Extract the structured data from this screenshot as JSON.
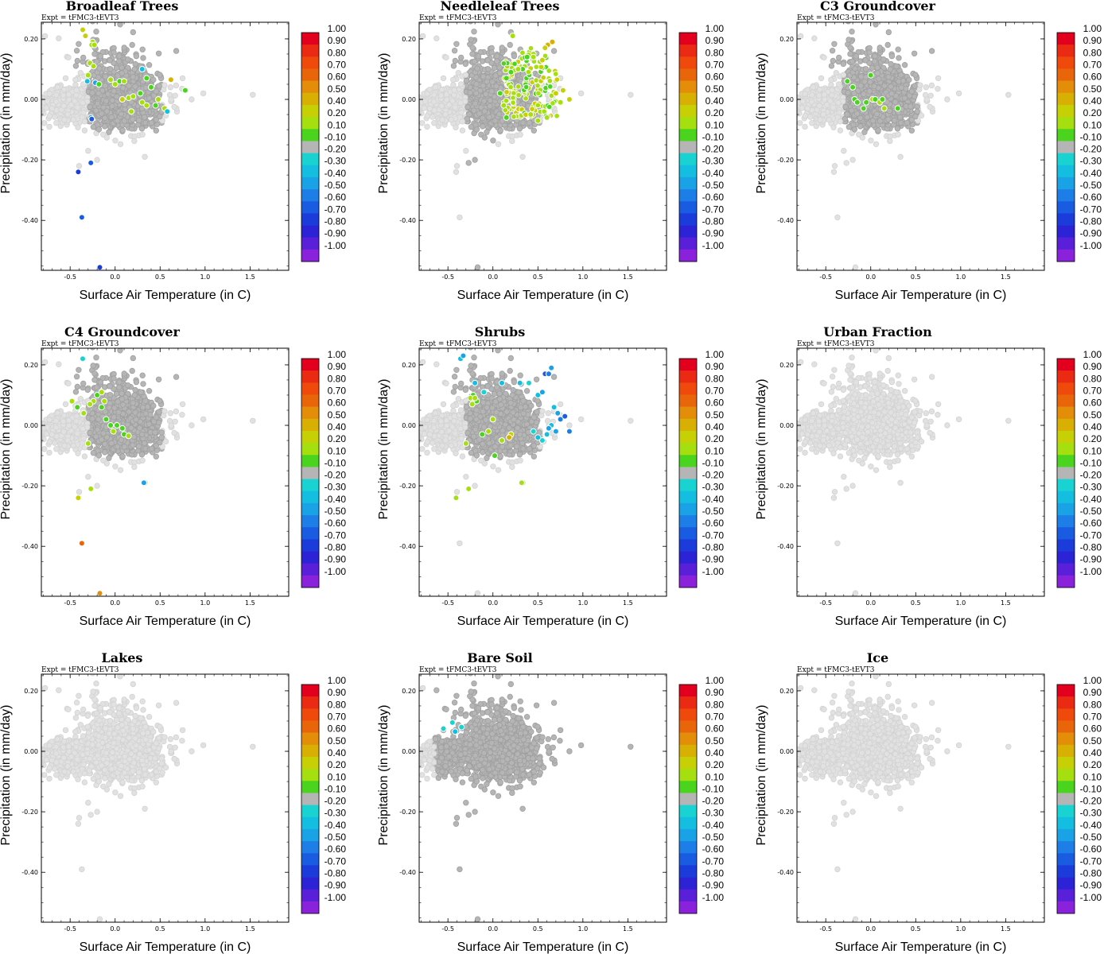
{
  "chart_data": {
    "type": "scatter",
    "experiment": "Expt = tFMC3-tEVT3",
    "xlabel": "Surface Air Temperature (in C)",
    "ylabel": "Precipitation (in mm/day)",
    "xlim": [
      -0.82,
      1.93
    ],
    "ylim": [
      -0.565,
      0.255
    ],
    "xticks": [
      -0.5,
      0.0,
      0.5,
      1.0,
      1.5
    ],
    "xtick_labels": [
      "-0.5",
      "0.0",
      "0.5",
      "1.0",
      "1.5"
    ],
    "yticks": [
      0.2,
      0.0,
      -0.2,
      -0.4
    ],
    "ytick_labels": [
      "0.20",
      "0.00",
      "-0.20",
      "-0.40"
    ],
    "colorbar": {
      "labels": [
        "1.00",
        "0.90",
        "0.80",
        "0.70",
        "0.60",
        "0.50",
        "0.40",
        "0.20",
        "0.10",
        "-0.10",
        "-0.20",
        "-0.30",
        "-0.40",
        "-0.50",
        "-0.60",
        "-0.70",
        "-0.80",
        "-0.90",
        "-1.00"
      ],
      "colors": [
        "#e2001e",
        "#ea2a12",
        "#ef4a0c",
        "#e8650a",
        "#e48d08",
        "#d8b004",
        "#c7cf05",
        "#a5df0f",
        "#4ad41e",
        "#b5b5b5",
        "#19d2d2",
        "#13bee0",
        "#1aa2e6",
        "#1c7ee6",
        "#1a5ce1",
        "#1b3cdb",
        "#2d23d6",
        "#5a1fd8",
        "#8a22dc"
      ],
      "neutral_color": "#b5b5b5",
      "background_color": "#e1e1e1"
    },
    "panels": [
      {
        "title": "Broadleaf Trees",
        "highlights": [
          {
            "x": -0.36,
            "y": 0.23,
            "c": 0.4
          },
          {
            "x": -0.33,
            "y": 0.21,
            "c": 0.4
          },
          {
            "x": -0.25,
            "y": 0.19,
            "c": 0.2
          },
          {
            "x": -0.26,
            "y": 0.18,
            "c": 0.3
          },
          {
            "x": -0.23,
            "y": 0.18,
            "c": 0.2
          },
          {
            "x": -0.28,
            "y": 0.12,
            "c": 0.2
          },
          {
            "x": -0.24,
            "y": 0.11,
            "c": 0.3
          },
          {
            "x": -0.3,
            "y": 0.08,
            "c": 0.2
          },
          {
            "x": -0.31,
            "y": 0.06,
            "c": -0.3
          },
          {
            "x": -0.22,
            "y": 0.055,
            "c": -0.4
          },
          {
            "x": -0.18,
            "y": 0.05,
            "c": 0.1
          },
          {
            "x": -0.05,
            "y": 0.065,
            "c": 0.3
          },
          {
            "x": 0.05,
            "y": 0.06,
            "c": 0.1
          },
          {
            "x": 0.0,
            "y": 0.05,
            "c": 0.2
          },
          {
            "x": 0.1,
            "y": 0.06,
            "c": 0.2
          },
          {
            "x": 0.3,
            "y": 0.1,
            "c": -0.3
          },
          {
            "x": 0.35,
            "y": 0.07,
            "c": 0.1
          },
          {
            "x": 0.62,
            "y": 0.065,
            "c": 0.5
          },
          {
            "x": 0.78,
            "y": 0.03,
            "c": 0.1
          },
          {
            "x": 0.08,
            "y": 0.0,
            "c": 0.4
          },
          {
            "x": 0.15,
            "y": 0.005,
            "c": 0.3
          },
          {
            "x": 0.2,
            "y": 0.01,
            "c": 0.2
          },
          {
            "x": 0.28,
            "y": 0.02,
            "c": 0.1
          },
          {
            "x": 0.3,
            "y": -0.01,
            "c": 0.2
          },
          {
            "x": 0.35,
            "y": -0.02,
            "c": 0.3
          },
          {
            "x": 0.45,
            "y": -0.02,
            "c": 0.1
          },
          {
            "x": 0.55,
            "y": -0.03,
            "c": 0.2
          },
          {
            "x": 0.48,
            "y": 0.0,
            "c": 0.2
          },
          {
            "x": 0.58,
            "y": -0.04,
            "c": -0.3
          },
          {
            "x": 0.4,
            "y": 0.04,
            "c": 0.1
          },
          {
            "x": 0.18,
            "y": -0.04,
            "c": 0.2
          },
          {
            "x": -0.27,
            "y": -0.06,
            "c": -0.4
          },
          {
            "x": -0.26,
            "y": -0.065,
            "c": -0.6
          },
          {
            "x": -0.27,
            "y": -0.21,
            "c": -0.6
          },
          {
            "x": -0.41,
            "y": -0.24,
            "c": -0.7
          },
          {
            "x": -0.37,
            "y": -0.39,
            "c": -0.6
          },
          {
            "x": -0.17,
            "y": -0.555,
            "c": -0.7
          }
        ]
      },
      {
        "title": "Needleleaf Trees",
        "highlights": [
          {
            "x": 0.22,
            "y": 0.21,
            "c": 0.2
          },
          {
            "x": 0.61,
            "y": 0.18,
            "c": 0.5
          },
          {
            "x": 0.66,
            "y": 0.19,
            "c": 0.5
          },
          {
            "x": 0.58,
            "y": 0.17,
            "c": 0.4
          },
          {
            "x": 0.55,
            "y": 0.13,
            "c": 0.4
          },
          {
            "x": 0.45,
            "y": 0.14,
            "c": 0.3
          },
          {
            "x": 0.38,
            "y": 0.14,
            "c": 0.1
          },
          {
            "x": 0.33,
            "y": 0.1,
            "c": 0.1
          },
          {
            "x": 0.28,
            "y": 0.1,
            "c": 0.2
          },
          {
            "x": 0.2,
            "y": 0.09,
            "c": 0.1
          },
          {
            "x": 0.15,
            "y": 0.07,
            "c": 0.1
          },
          {
            "x": 0.08,
            "y": 0.02,
            "c": 0.1
          },
          {
            "x": 0.12,
            "y": -0.02,
            "c": 0.2
          },
          {
            "x": 0.15,
            "y": -0.06,
            "c": 0.1
          },
          {
            "x": 0.5,
            "y": -0.07,
            "c": 0.3
          },
          {
            "x": 0.7,
            "y": 0.02,
            "c": 0.4
          },
          {
            "x": 0.75,
            "y": -0.01,
            "c": 0.3
          },
          {
            "x": 0.78,
            "y": 0.03,
            "c": 0.4
          },
          {
            "x": 0.85,
            "y": 0.0,
            "c": 0.4
          },
          {
            "x": 0.6,
            "y": -0.06,
            "c": 0.3
          },
          {
            "x": 0.42,
            "y": -0.05,
            "c": 0.2
          }
        ],
        "cloud": {
          "x": [
            0.12,
            0.72
          ],
          "y": [
            -0.06,
            0.17
          ],
          "n": 150,
          "c": [
            0.1,
            0.2,
            0.3,
            0.4
          ]
        }
      },
      {
        "title": "C3 Groundcover",
        "highlights": [
          {
            "x": -0.26,
            "y": 0.06,
            "c": 0.1
          },
          {
            "x": -0.2,
            "y": 0.04,
            "c": 0.1
          },
          {
            "x": -0.18,
            "y": 0.0,
            "c": 0.1
          },
          {
            "x": 0.0,
            "y": 0.08,
            "c": 0.1
          },
          {
            "x": -0.05,
            "y": -0.01,
            "c": 0.1
          },
          {
            "x": 0.02,
            "y": 0.0,
            "c": 0.2
          },
          {
            "x": 0.05,
            "y": 0.0,
            "c": 0.1
          },
          {
            "x": 0.1,
            "y": -0.01,
            "c": 0.2
          },
          {
            "x": -0.08,
            "y": -0.03,
            "c": 0.1
          },
          {
            "x": -0.15,
            "y": -0.01,
            "c": 0.1
          },
          {
            "x": 0.13,
            "y": 0.0,
            "c": 0.1
          },
          {
            "x": 0.15,
            "y": -0.03,
            "c": 0.2
          },
          {
            "x": 0.3,
            "y": -0.03,
            "c": 0.1
          }
        ]
      },
      {
        "title": "C4 Groundcover",
        "highlights": [
          {
            "x": -0.36,
            "y": 0.22,
            "c": -0.2
          },
          {
            "x": -0.24,
            "y": 0.08,
            "c": 0.2
          },
          {
            "x": -0.28,
            "y": 0.07,
            "c": 0.3
          },
          {
            "x": -0.12,
            "y": 0.08,
            "c": 0.2
          },
          {
            "x": -0.15,
            "y": 0.06,
            "c": 0.1
          },
          {
            "x": -0.2,
            "y": 0.1,
            "c": 0.1
          },
          {
            "x": -0.15,
            "y": 0.11,
            "c": 0.2
          },
          {
            "x": -0.48,
            "y": 0.08,
            "c": 0.3
          },
          {
            "x": -0.42,
            "y": 0.06,
            "c": 0.1
          },
          {
            "x": -0.35,
            "y": 0.04,
            "c": 0.3
          },
          {
            "x": -0.1,
            "y": 0.02,
            "c": 0.1
          },
          {
            "x": 0.02,
            "y": 0.0,
            "c": 0.1
          },
          {
            "x": -0.02,
            "y": -0.02,
            "c": 0.2
          },
          {
            "x": 0.08,
            "y": -0.01,
            "c": 0.1
          },
          {
            "x": 0.1,
            "y": -0.03,
            "c": 0.1
          },
          {
            "x": 0.15,
            "y": -0.035,
            "c": 0.2
          },
          {
            "x": -0.05,
            "y": 0.0,
            "c": 0.1
          },
          {
            "x": -0.3,
            "y": -0.06,
            "c": 0.3
          },
          {
            "x": 0.32,
            "y": -0.19,
            "c": -0.4
          },
          {
            "x": -0.27,
            "y": -0.21,
            "c": 0.3
          },
          {
            "x": -0.41,
            "y": -0.24,
            "c": 0.4
          },
          {
            "x": -0.37,
            "y": -0.39,
            "c": 0.7
          },
          {
            "x": -0.17,
            "y": -0.555,
            "c": 0.6
          }
        ]
      },
      {
        "title": "Shrubs",
        "highlights": [
          {
            "x": -0.36,
            "y": 0.22,
            "c": -0.3
          },
          {
            "x": -0.33,
            "y": 0.23,
            "c": -0.4
          },
          {
            "x": -0.2,
            "y": 0.14,
            "c": -0.3
          },
          {
            "x": 0.58,
            "y": 0.17,
            "c": -0.6
          },
          {
            "x": 0.65,
            "y": 0.19,
            "c": -0.4
          },
          {
            "x": 0.62,
            "y": 0.17,
            "c": -0.5
          },
          {
            "x": 0.3,
            "y": 0.14,
            "c": -0.3
          },
          {
            "x": 0.4,
            "y": 0.14,
            "c": -0.2
          },
          {
            "x": 0.5,
            "y": 0.1,
            "c": -0.3
          },
          {
            "x": 0.55,
            "y": 0.11,
            "c": -0.4
          },
          {
            "x": 0.1,
            "y": 0.14,
            "c": -0.3
          },
          {
            "x": -0.1,
            "y": 0.11,
            "c": -0.2
          },
          {
            "x": -0.22,
            "y": 0.1,
            "c": 0.1
          },
          {
            "x": -0.25,
            "y": 0.09,
            "c": 0.2
          },
          {
            "x": -0.18,
            "y": 0.08,
            "c": 0.1
          },
          {
            "x": -0.23,
            "y": 0.07,
            "c": 0.2
          },
          {
            "x": -0.2,
            "y": 0.09,
            "c": 0.3
          },
          {
            "x": 0.68,
            "y": 0.06,
            "c": -0.3
          },
          {
            "x": 0.72,
            "y": 0.04,
            "c": -0.4
          },
          {
            "x": 0.75,
            "y": 0.02,
            "c": -0.5
          },
          {
            "x": 0.8,
            "y": 0.03,
            "c": -0.6
          },
          {
            "x": 0.65,
            "y": 0.0,
            "c": -0.3
          },
          {
            "x": 0.7,
            "y": -0.02,
            "c": -0.4
          },
          {
            "x": 0.6,
            "y": -0.03,
            "c": -0.3
          },
          {
            "x": 0.55,
            "y": -0.05,
            "c": -0.2
          },
          {
            "x": 0.5,
            "y": -0.04,
            "c": -0.3
          },
          {
            "x": 0.45,
            "y": -0.02,
            "c": -0.2
          },
          {
            "x": 0.62,
            "y": -0.01,
            "c": -0.4
          },
          {
            "x": 0.85,
            "y": -0.02,
            "c": -0.5
          },
          {
            "x": 0.0,
            "y": 0.02,
            "c": 0.2
          },
          {
            "x": -0.05,
            "y": -0.02,
            "c": 0.2
          },
          {
            "x": 0.2,
            "y": -0.03,
            "c": 0.4
          },
          {
            "x": 0.18,
            "y": -0.04,
            "c": 0.5
          },
          {
            "x": 0.1,
            "y": -0.05,
            "c": 0.2
          },
          {
            "x": 0.02,
            "y": -0.1,
            "c": 0.1
          },
          {
            "x": -0.12,
            "y": -0.03,
            "c": 0.1
          },
          {
            "x": -0.3,
            "y": -0.06,
            "c": 0.3
          },
          {
            "x": 0.32,
            "y": -0.19,
            "c": 0.3
          },
          {
            "x": -0.27,
            "y": -0.21,
            "c": 0.2
          },
          {
            "x": -0.41,
            "y": -0.24,
            "c": 0.3
          }
        ]
      },
      {
        "title": "Urban Fraction",
        "highlights": [],
        "background_only": true
      },
      {
        "title": "Lakes",
        "highlights": [],
        "background_only": true
      },
      {
        "title": "Bare Soil",
        "highlights": [
          {
            "x": -0.55,
            "y": 0.075,
            "c": -0.2
          },
          {
            "x": -0.45,
            "y": 0.095,
            "c": -0.2
          },
          {
            "x": -0.42,
            "y": 0.065,
            "c": -0.3
          },
          {
            "x": -0.35,
            "y": 0.08,
            "c": -0.2
          }
        ],
        "gray_cloud": true
      },
      {
        "title": "Ice",
        "highlights": [],
        "background_only": true
      }
    ]
  }
}
